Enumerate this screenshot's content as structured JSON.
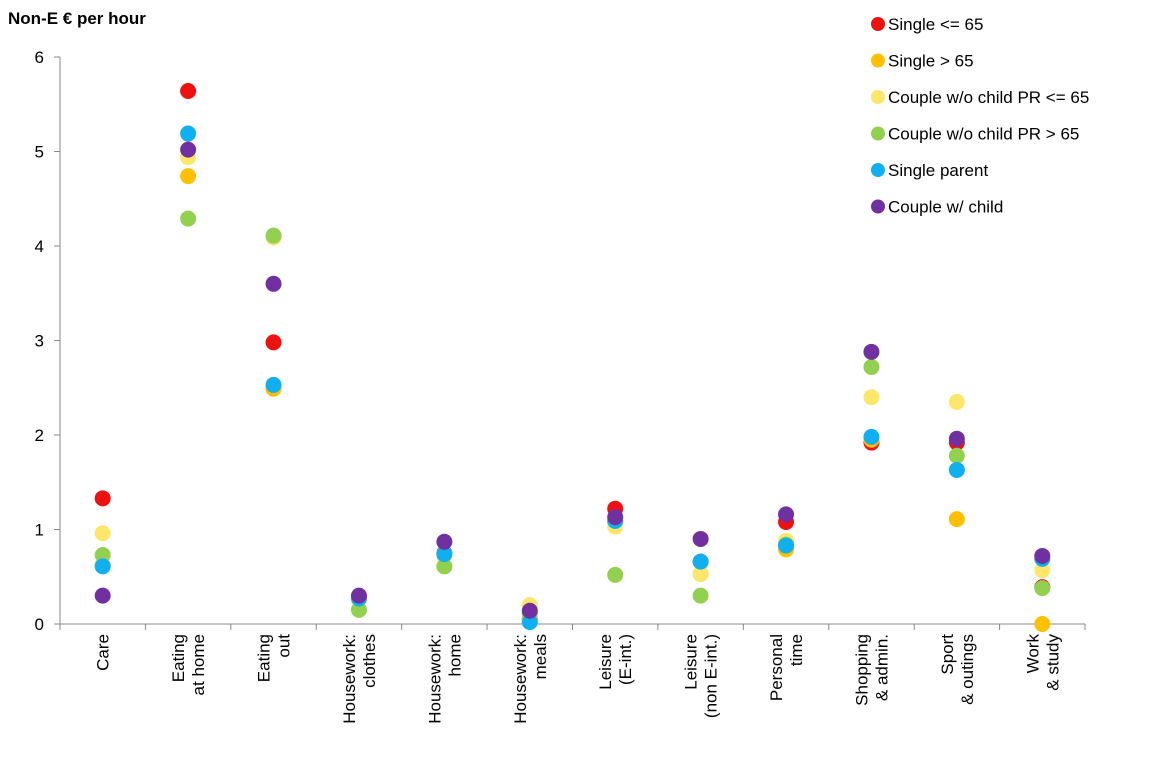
{
  "chart_data": {
    "type": "scatter",
    "ylabel": "Non-E € per hour",
    "xlabel": "",
    "ylim": [
      0,
      6
    ],
    "yticks": [
      0,
      1,
      2,
      3,
      4,
      5,
      6
    ],
    "grid": false,
    "legend_position": "top-right",
    "categories": [
      [
        "Care"
      ],
      [
        "Eating",
        "at home"
      ],
      [
        "Eating",
        "out"
      ],
      [
        "Housework:",
        "clothes"
      ],
      [
        "Housework:",
        "home"
      ],
      [
        "Housework:",
        "meals"
      ],
      [
        "Leisure",
        "(E-int.)"
      ],
      [
        "Leisure",
        "(non E-int.)"
      ],
      [
        "Personal",
        "time"
      ],
      [
        "Shopping",
        "& admin."
      ],
      [
        "Sport",
        "& outings"
      ],
      [
        "Work",
        "& study"
      ]
    ],
    "series": [
      {
        "name": "Single <= 65",
        "color": "#ee1111",
        "values": [
          1.33,
          5.64,
          2.98,
          0.27,
          0.75,
          0.05,
          1.22,
          0.66,
          1.08,
          1.92,
          1.92,
          0.39
        ]
      },
      {
        "name": "Single > 65",
        "color": "#ffc000",
        "values": [
          0.62,
          4.74,
          2.49,
          0.28,
          0.73,
          0.06,
          1.08,
          0.53,
          0.79,
          1.95,
          1.11,
          0.0
        ]
      },
      {
        "name": "Couple w/o child PR <= 65",
        "color": "#fde76b",
        "values": [
          0.96,
          4.94,
          4.09,
          0.26,
          0.74,
          0.2,
          1.03,
          0.53,
          0.88,
          2.4,
          2.35,
          0.57
        ]
      },
      {
        "name": "Couple w/o child PR > 65",
        "color": "#92d050",
        "values": [
          0.73,
          4.29,
          4.11,
          0.15,
          0.61,
          0.11,
          0.52,
          0.3,
          0.84,
          2.72,
          1.78,
          0.38
        ]
      },
      {
        "name": "Single parent",
        "color": "#10b0f0",
        "values": [
          0.61,
          5.19,
          2.53,
          0.27,
          0.74,
          0.02,
          1.09,
          0.66,
          0.83,
          1.98,
          1.63,
          0.69
        ]
      },
      {
        "name": "Couple w/ child",
        "color": "#7030a0",
        "values": [
          0.3,
          5.02,
          3.6,
          0.3,
          0.87,
          0.14,
          1.13,
          0.9,
          1.16,
          2.88,
          1.96,
          0.72
        ]
      }
    ]
  }
}
